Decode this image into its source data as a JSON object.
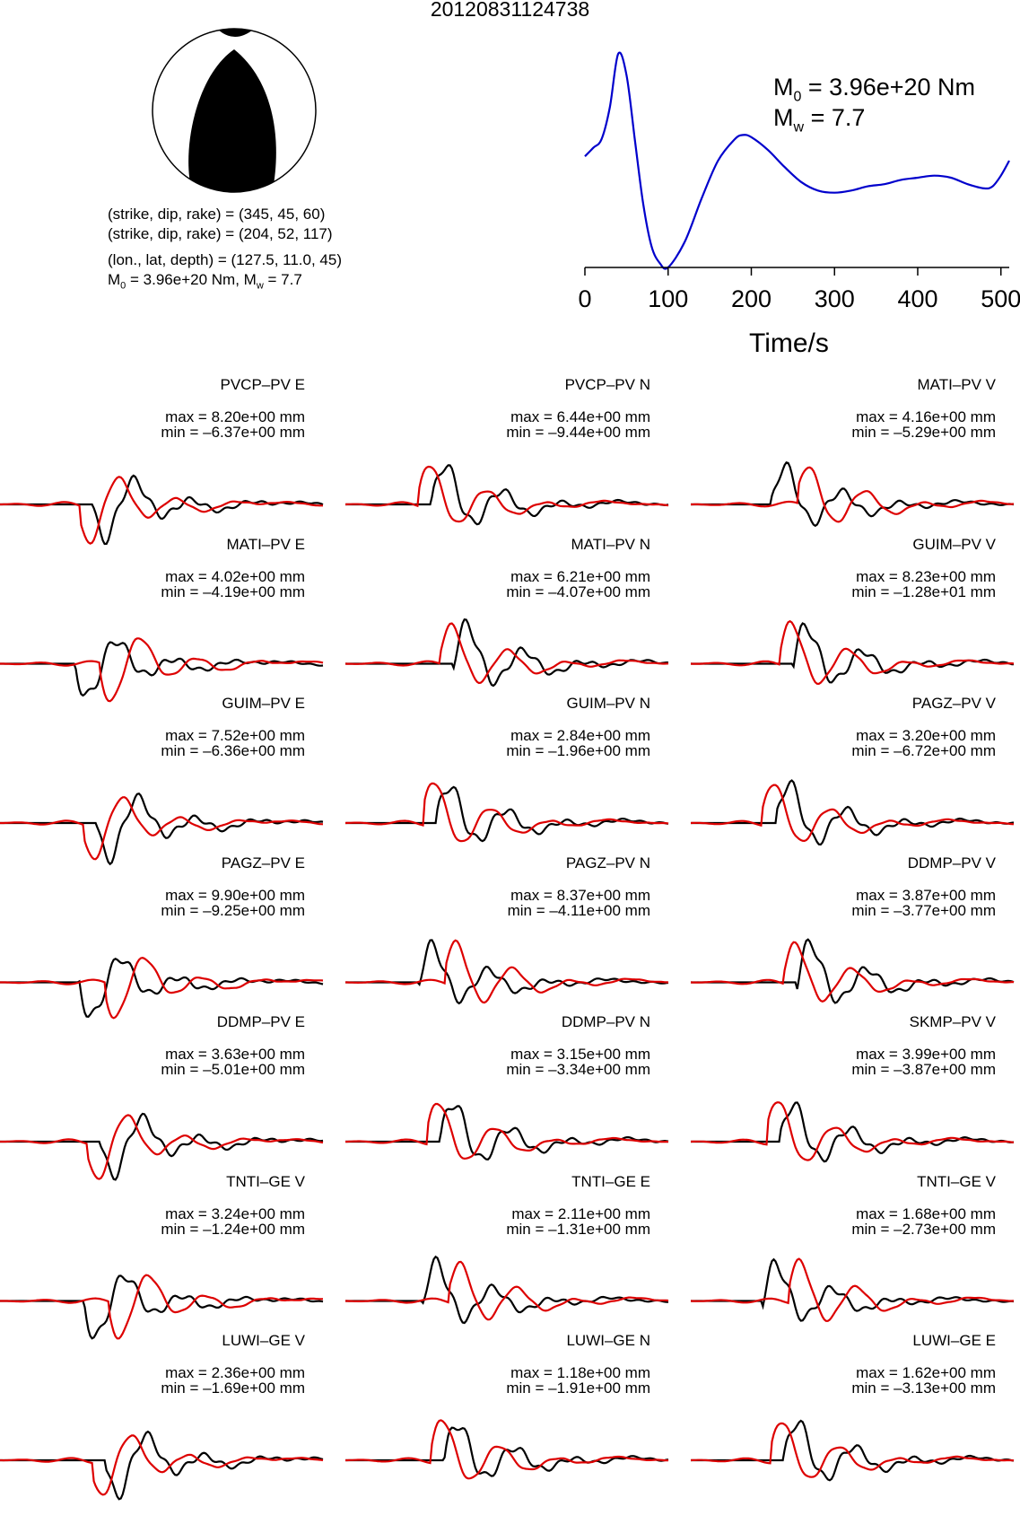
{
  "title": "20120831124738",
  "mechanism": {
    "line1": "(strike, dip, rake) = (345, 45, 60)",
    "line2": "(strike, dip, rake) = (204, 52, 117)",
    "line3": "(lon., lat, depth) = (127.5, 11.0, 45)",
    "line4_m0": "M",
    "line4_sub": "0",
    "line4_rest": " = 3.96e+20 Nm, M",
    "line4_sub2": "w",
    "line4_end": " = 7.7"
  },
  "stf": {
    "m0_label": "M",
    "m0_sub": "0",
    "m0_value": " = 3.96e+20 Nm",
    "mw_label": "M",
    "mw_sub": "w",
    "mw_value": " = 7.7",
    "xlabel": "Time/s",
    "ticks": [
      "0",
      "100",
      "200",
      "300",
      "400",
      "500"
    ],
    "color": "#0000cc"
  },
  "chart_data": {
    "type": "line",
    "title": "20120831124738",
    "series_colors": {
      "observed": "#000000",
      "synthetic": "#dd0000"
    },
    "stf": {
      "x": [
        0,
        10,
        20,
        30,
        40,
        50,
        60,
        70,
        80,
        90,
        100,
        120,
        140,
        160,
        180,
        190,
        200,
        220,
        240,
        260,
        280,
        300,
        320,
        340,
        360,
        380,
        400,
        420,
        440,
        460,
        480,
        490,
        500,
        510
      ],
      "y": [
        0.52,
        0.56,
        0.6,
        0.75,
        1.0,
        0.9,
        0.6,
        0.3,
        0.1,
        0.02,
        0.0,
        0.12,
        0.32,
        0.5,
        0.6,
        0.62,
        0.61,
        0.55,
        0.47,
        0.4,
        0.36,
        0.35,
        0.36,
        0.38,
        0.39,
        0.41,
        0.42,
        0.43,
        0.42,
        0.39,
        0.37,
        0.38,
        0.43,
        0.5
      ],
      "xlim": [
        0,
        510
      ],
      "xlabel": "Time/s"
    },
    "traces": [
      {
        "label": "PVCP–PV E",
        "max": "max = 8.20e+00 mm",
        "min": "min = –6.37e+00 mm"
      },
      {
        "label": "PVCP–PV N",
        "max": "max = 6.44e+00 mm",
        "min": "min = –9.44e+00 mm"
      },
      {
        "label": "MATI–PV V",
        "max": "max = 4.16e+00 mm",
        "min": "min = –5.29e+00 mm"
      },
      {
        "label": "MATI–PV E",
        "max": "max = 4.02e+00 mm",
        "min": "min = –4.19e+00 mm"
      },
      {
        "label": "MATI–PV N",
        "max": "max = 6.21e+00 mm",
        "min": "min = –4.07e+00 mm"
      },
      {
        "label": "GUIM–PV V",
        "max": "max = 8.23e+00 mm",
        "min": "min = –1.28e+01 mm"
      },
      {
        "label": "GUIM–PV E",
        "max": "max = 7.52e+00 mm",
        "min": "min = –6.36e+00 mm"
      },
      {
        "label": "GUIM–PV N",
        "max": "max = 2.84e+00 mm",
        "min": "min = –1.96e+00 mm"
      },
      {
        "label": "PAGZ–PV V",
        "max": "max = 3.20e+00 mm",
        "min": "min = –6.72e+00 mm"
      },
      {
        "label": "PAGZ–PV E",
        "max": "max = 9.90e+00 mm",
        "min": "min = –9.25e+00 mm"
      },
      {
        "label": "PAGZ–PV N",
        "max": "max = 8.37e+00 mm",
        "min": "min = –4.11e+00 mm"
      },
      {
        "label": "DDMP–PV V",
        "max": "max = 3.87e+00 mm",
        "min": "min = –3.77e+00 mm"
      },
      {
        "label": "DDMP–PV E",
        "max": "max = 3.63e+00 mm",
        "min": "min = –5.01e+00 mm"
      },
      {
        "label": "DDMP–PV N",
        "max": "max = 3.15e+00 mm",
        "min": "min = –3.34e+00 mm"
      },
      {
        "label": "SKMP–PV V",
        "max": "max = 3.99e+00 mm",
        "min": "min = –3.87e+00 mm"
      },
      {
        "label": "TNTI–GE V",
        "max": "max = 3.24e+00 mm",
        "min": "min = –1.24e+00 mm"
      },
      {
        "label": "TNTI–GE E",
        "max": "max = 2.11e+00 mm",
        "min": "min = –1.31e+00 mm"
      },
      {
        "label": "TNTI–GE V",
        "max": "max = 1.68e+00 mm",
        "min": "min = –2.73e+00 mm"
      },
      {
        "label": "LUWI–GE V",
        "max": "max = 2.36e+00 mm",
        "min": "min = –1.69e+00 mm"
      },
      {
        "label": "LUWI–GE N",
        "max": "max = 1.18e+00 mm",
        "min": "min = –1.91e+00 mm"
      },
      {
        "label": "LUWI–GE E",
        "max": "max = 1.62e+00 mm",
        "min": "min = –3.13e+00 mm"
      }
    ]
  }
}
